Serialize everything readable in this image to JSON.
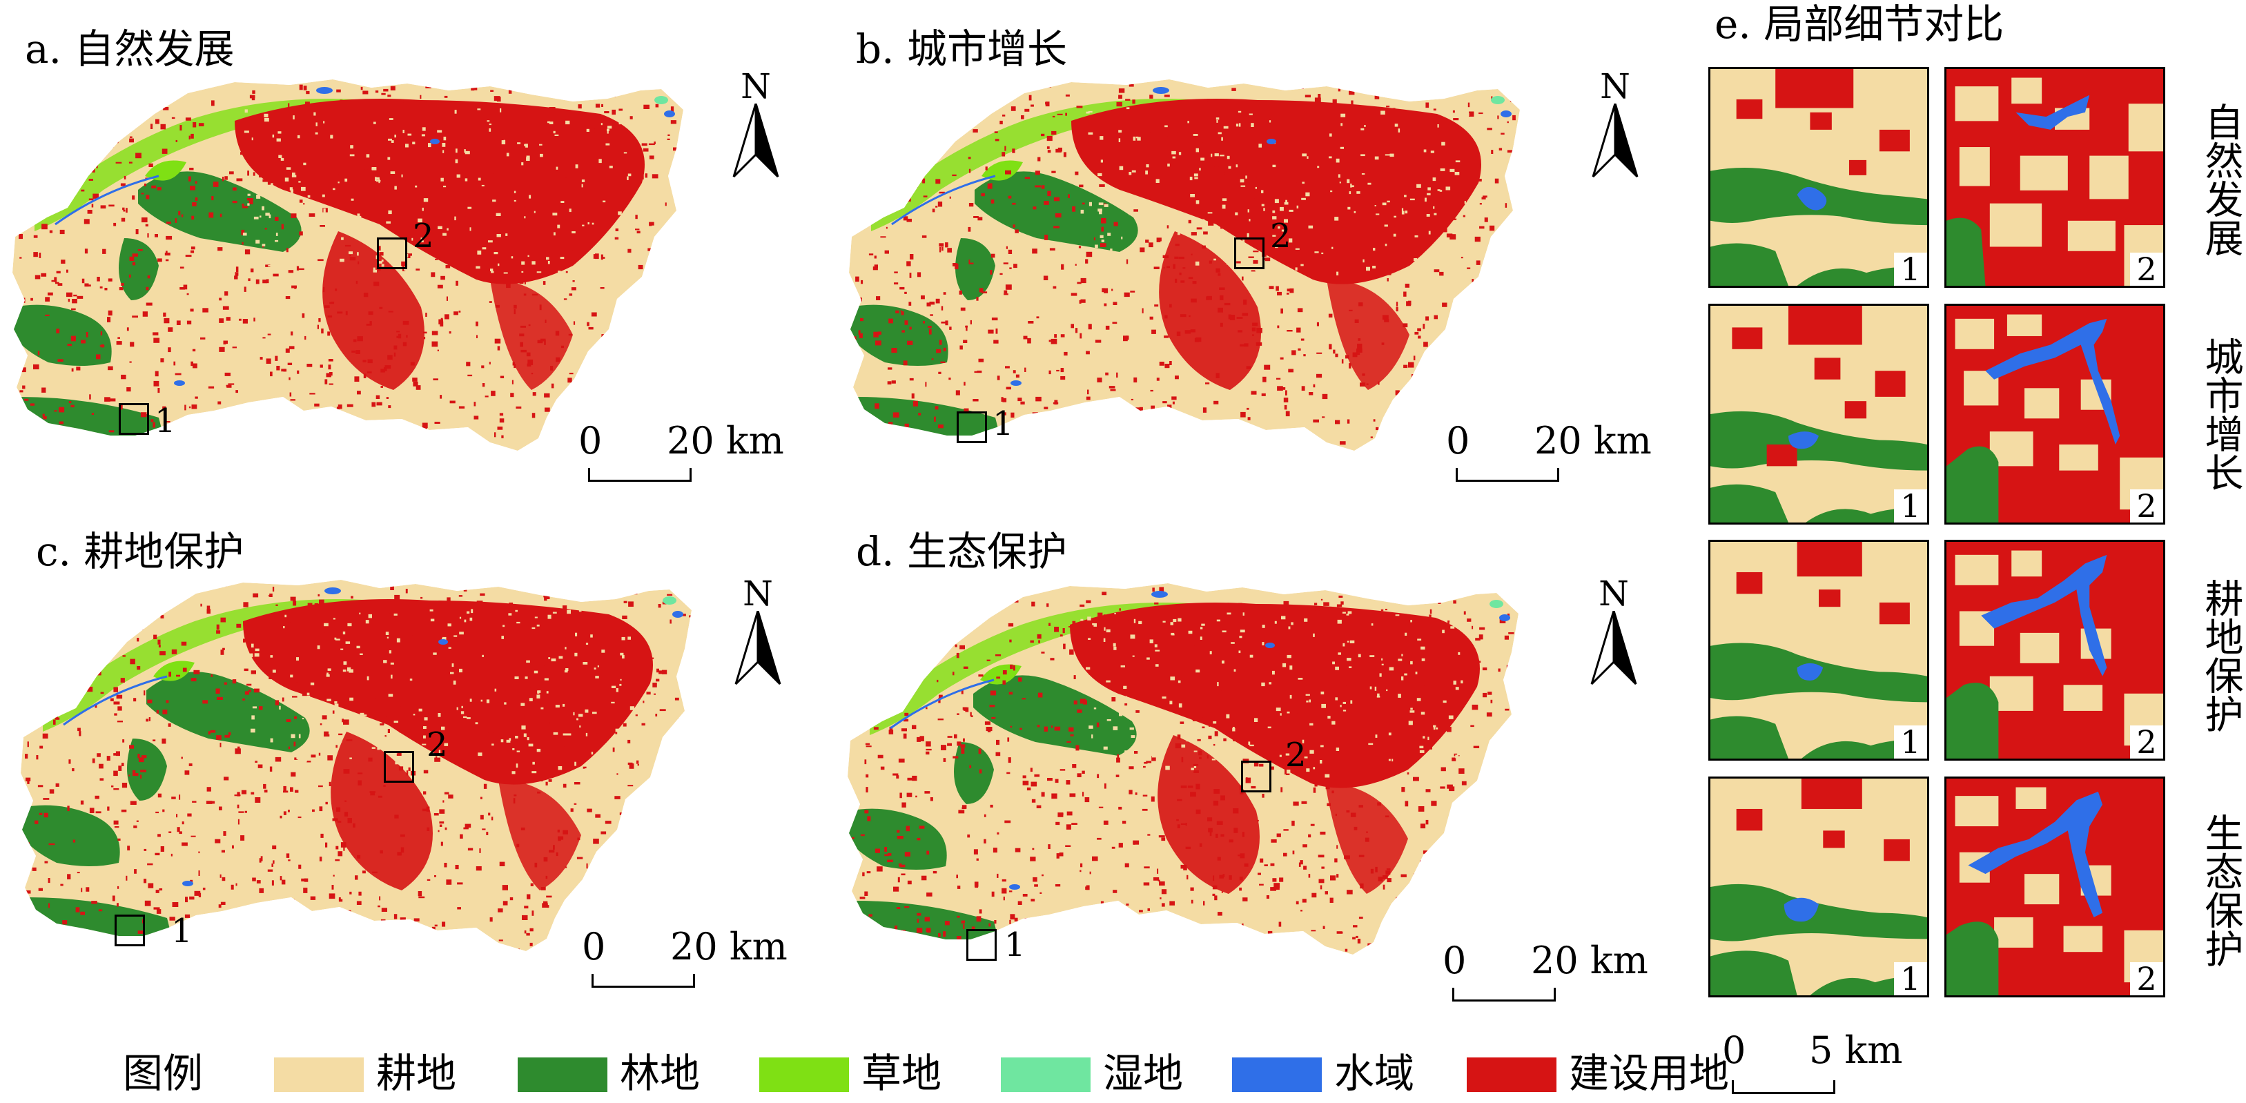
{
  "colors": {
    "farmland": "#f4dca4",
    "forest": "#2e8b2e",
    "grassland": "#7fe014",
    "wetland": "#6fe6a0",
    "water": "#2f6fe8",
    "construction": "#d61414"
  },
  "panels": [
    {
      "id": "a",
      "title": "a. 自然发展",
      "roi1": "1",
      "roi2": "2"
    },
    {
      "id": "b",
      "title": "b. 城市增长",
      "roi1": "1",
      "roi2": "2"
    },
    {
      "id": "c",
      "title": "c. 耕地保护",
      "roi1": "1",
      "roi2": "2"
    },
    {
      "id": "d",
      "title": "d. 生态保护",
      "roi1": "1",
      "roi2": "2"
    }
  ],
  "north_label": "N",
  "map_scale": {
    "start": "0",
    "end": "20 km"
  },
  "detail": {
    "title": "e. 局部细节对比",
    "rows": [
      "自然发展",
      "城市增长",
      "耕地保护",
      "生态保护"
    ],
    "col_numbers": [
      "1",
      "2"
    ],
    "scale": {
      "start": "0",
      "end": "5 km"
    }
  },
  "legend": {
    "title": "图例",
    "items": [
      {
        "label": "耕地",
        "color_key": "farmland"
      },
      {
        "label": "林地",
        "color_key": "forest"
      },
      {
        "label": "草地",
        "color_key": "grassland"
      },
      {
        "label": "湿地",
        "color_key": "wetland"
      },
      {
        "label": "水域",
        "color_key": "water"
      },
      {
        "label": "建设用地",
        "color_key": "construction"
      }
    ]
  }
}
